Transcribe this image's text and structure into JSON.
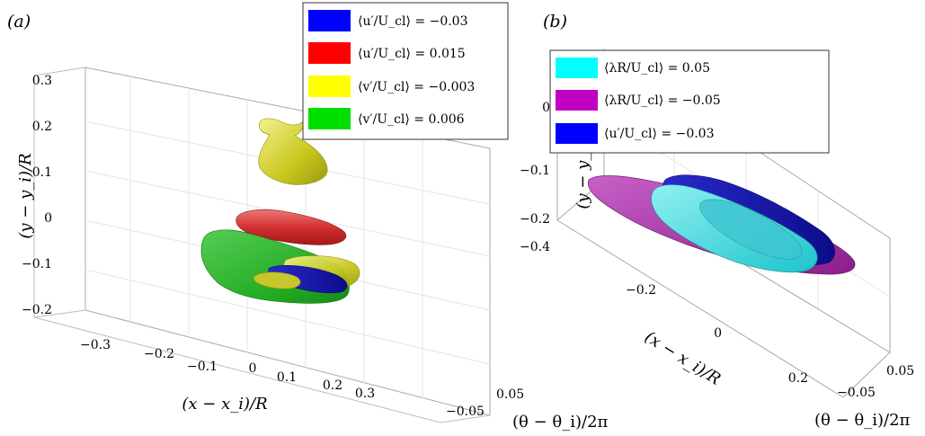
{
  "figure": {
    "panels": [
      {
        "label": "(a)",
        "ylabel": "(y − y_i)/R",
        "xlabel": "(x − x_i)/R",
        "zlabel": "(θ − θ_i)/2π",
        "y_ticks": [
          "0.3",
          "0.2",
          "0.1",
          "0",
          "−0.1",
          "−0.2"
        ],
        "x_ticks": [
          "−0.3",
          "−0.2",
          "−0.1",
          "0",
          "0.1",
          "0.2",
          "0.3"
        ],
        "z_ticks": [
          "0.05",
          "−0.05"
        ],
        "legend": [
          {
            "color": "#0000ff",
            "text": "⟨u′/U_cl⟩ = −0.03"
          },
          {
            "color": "#ff0000",
            "text": "⟨u′/U_cl⟩ = 0.015"
          },
          {
            "color": "#ffff00",
            "text": "⟨v′/U_cl⟩ = −0.003"
          },
          {
            "color": "#00e000",
            "text": "⟨v′/U_cl⟩ = 0.006"
          }
        ]
      },
      {
        "label": "(b)",
        "ylabel": "(y − y_i)/R",
        "xlabel": "(x − x_i)/R",
        "zlabel": "(θ − θ_i)/2π",
        "y_ticks": [
          "0",
          "−0.1",
          "−0.2"
        ],
        "x_ticks": [
          "−0.4",
          "−0.2",
          "0",
          "0.2"
        ],
        "z_ticks": [
          "0.05",
          "−0.05"
        ],
        "legend": [
          {
            "color": "#00ffff",
            "text": "⟨λR/U_cl⟩ = 0.05"
          },
          {
            "color": "#c000c0",
            "text": "⟨λR/U_cl⟩ = −0.05"
          },
          {
            "color": "#0000ff",
            "text": "⟨u′/U_cl⟩ = −0.03"
          }
        ]
      }
    ]
  }
}
